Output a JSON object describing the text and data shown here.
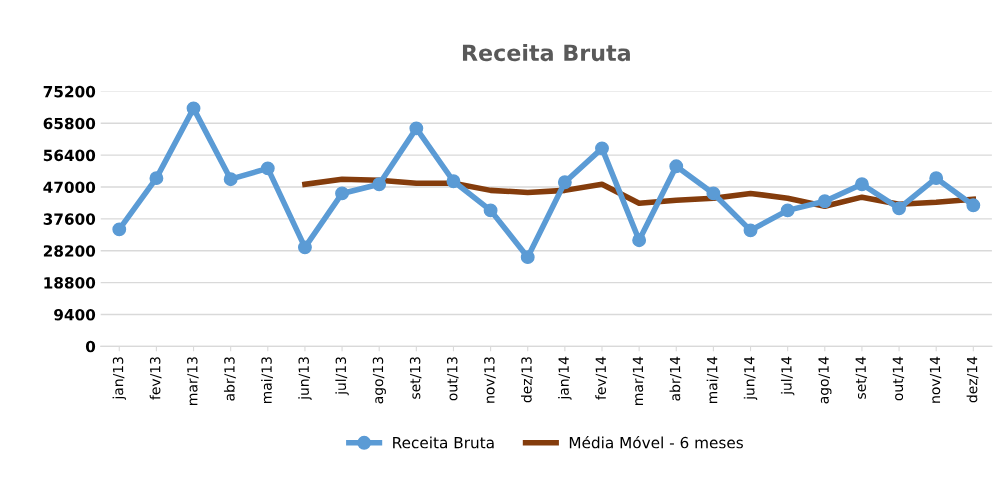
{
  "chart_data": {
    "type": "line",
    "title": "Receita Bruta",
    "categories": [
      "jan/13",
      "fev/13",
      "mar/13",
      "abr/13",
      "mai/13",
      "jun/13",
      "jul/13",
      "ago/13",
      "set/13",
      "out/13",
      "nov/13",
      "dez/13",
      "jan/14",
      "fev/14",
      "mar/14",
      "abr/14",
      "mai/14",
      "jun/14",
      "jul/14",
      "ago/14",
      "set/14",
      "out/14",
      "nov/14",
      "dez/14"
    ],
    "series": [
      {
        "name": "Receita Bruta",
        "color": "#5b9bd5",
        "marker": "circle",
        "values": [
          34500,
          49600,
          70200,
          49300,
          52500,
          29200,
          45100,
          47800,
          64300,
          48700,
          40100,
          26300,
          48400,
          58400,
          31300,
          53100,
          45100,
          34200,
          40100,
          42800,
          47800,
          40700,
          49600,
          41600
        ]
      },
      {
        "name": "Média Móvel - 6 meses",
        "color": "#843c0c",
        "marker": "none",
        "values": [
          null,
          null,
          null,
          null,
          null,
          47800,
          49300,
          49000,
          48100,
          48100,
          46000,
          45400,
          46000,
          47800,
          42200,
          43100,
          43700,
          45100,
          43700,
          41300,
          44000,
          41900,
          42500,
          43400
        ]
      }
    ],
    "ylim": [
      0,
      75200
    ],
    "yticks": [
      0,
      9400,
      18800,
      28200,
      37600,
      47000,
      56400,
      65800,
      75200
    ],
    "grid": "y",
    "legend": "bottom"
  }
}
